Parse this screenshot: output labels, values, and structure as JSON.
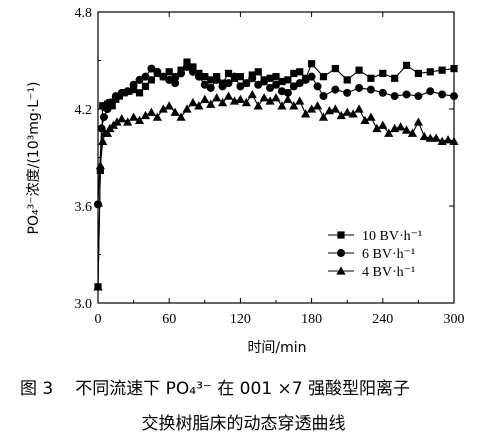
{
  "chart_data": {
    "type": "line",
    "title": "",
    "xlabel": "时间/min",
    "ylabel": "PO₄³⁻浓度/(10³mg·L⁻¹)",
    "xlim": [
      0,
      300
    ],
    "ylim": [
      3.0,
      4.8
    ],
    "xticks": [
      0,
      60,
      120,
      180,
      240,
      300
    ],
    "yticks": [
      3.0,
      3.6,
      4.2,
      4.8
    ],
    "xtick_labels": [
      "0",
      "60",
      "120",
      "180",
      "240",
      "300"
    ],
    "ytick_labels": [
      "3.0",
      "3.6",
      "4.2",
      "4.8"
    ],
    "legend_position": "bottom-right",
    "grid": false,
    "series": [
      {
        "name": "10 BV·h⁻¹",
        "marker": "square",
        "x": [
          0,
          2,
          4,
          6,
          8,
          10,
          12,
          15,
          18,
          22,
          26,
          30,
          35,
          40,
          45,
          50,
          55,
          60,
          65,
          70,
          75,
          80,
          85,
          90,
          95,
          100,
          105,
          110,
          115,
          120,
          125,
          130,
          135,
          140,
          145,
          150,
          155,
          160,
          165,
          170,
          175,
          180,
          190,
          200,
          210,
          220,
          230,
          240,
          250,
          260,
          270,
          280,
          290,
          300
        ],
        "y": [
          3.1,
          3.82,
          4.22,
          4.21,
          4.23,
          4.24,
          4.22,
          4.26,
          4.28,
          4.3,
          4.31,
          4.32,
          4.3,
          4.34,
          4.38,
          4.42,
          4.4,
          4.43,
          4.4,
          4.44,
          4.49,
          4.46,
          4.42,
          4.4,
          4.38,
          4.4,
          4.36,
          4.42,
          4.39,
          4.4,
          4.36,
          4.41,
          4.43,
          4.38,
          4.39,
          4.4,
          4.37,
          4.38,
          4.42,
          4.43,
          4.39,
          4.48,
          4.4,
          4.45,
          4.38,
          4.44,
          4.39,
          4.42,
          4.39,
          4.47,
          4.42,
          4.43,
          4.44,
          4.45
        ]
      },
      {
        "name": "6 BV·h⁻¹",
        "marker": "circle",
        "x": [
          0,
          3,
          5,
          8,
          11,
          15,
          20,
          25,
          30,
          35,
          40,
          45,
          50,
          55,
          60,
          65,
          70,
          75,
          80,
          85,
          90,
          95,
          100,
          105,
          110,
          115,
          120,
          125,
          130,
          135,
          140,
          145,
          150,
          155,
          160,
          165,
          170,
          175,
          180,
          185,
          190,
          200,
          210,
          220,
          230,
          240,
          250,
          260,
          270,
          280,
          290,
          300
        ],
        "y": [
          3.61,
          4.08,
          4.15,
          4.2,
          4.24,
          4.28,
          4.3,
          4.31,
          4.35,
          4.38,
          4.4,
          4.45,
          4.43,
          4.4,
          4.38,
          4.36,
          4.42,
          4.46,
          4.43,
          4.4,
          4.35,
          4.33,
          4.38,
          4.34,
          4.36,
          4.4,
          4.34,
          4.36,
          4.39,
          4.35,
          4.37,
          4.33,
          4.35,
          4.31,
          4.3,
          4.34,
          4.36,
          4.38,
          4.4,
          4.34,
          4.28,
          4.32,
          4.3,
          4.33,
          4.32,
          4.3,
          4.28,
          4.29,
          4.28,
          4.31,
          4.29,
          4.28
        ]
      },
      {
        "name": "4 BV·h⁻¹",
        "marker": "triangle",
        "x": [
          0,
          2,
          4,
          6,
          8,
          10,
          13,
          16,
          20,
          25,
          30,
          35,
          40,
          45,
          50,
          55,
          60,
          65,
          70,
          75,
          80,
          85,
          90,
          95,
          100,
          105,
          110,
          115,
          120,
          125,
          130,
          135,
          140,
          145,
          150,
          155,
          160,
          165,
          170,
          175,
          180,
          185,
          190,
          195,
          200,
          205,
          210,
          215,
          220,
          225,
          230,
          235,
          240,
          245,
          250,
          255,
          260,
          265,
          270,
          275,
          280,
          285,
          290,
          295,
          300
        ],
        "y": [
          3.1,
          3.85,
          4.0,
          4.05,
          4.05,
          4.08,
          4.1,
          4.12,
          4.14,
          4.12,
          4.15,
          4.13,
          4.16,
          4.18,
          4.15,
          4.2,
          4.22,
          4.18,
          4.15,
          4.2,
          4.24,
          4.22,
          4.26,
          4.23,
          4.27,
          4.24,
          4.28,
          4.25,
          4.26,
          4.24,
          4.29,
          4.22,
          4.27,
          4.25,
          4.27,
          4.22,
          4.26,
          4.22,
          4.25,
          4.17,
          4.2,
          4.22,
          4.15,
          4.19,
          4.2,
          4.16,
          4.18,
          4.17,
          4.2,
          4.13,
          4.15,
          4.08,
          4.1,
          4.05,
          4.08,
          4.09,
          4.07,
          4.05,
          4.12,
          4.03,
          4.02,
          4.02,
          4.0,
          4.01,
          4.0
        ]
      }
    ]
  },
  "caption": {
    "fig_label": "图 3",
    "line1_text": "不同流速下 PO₄³⁻ 在 001 ×7 强酸型阳离子",
    "line2_text": "交换树脂床的动态穿透曲线"
  }
}
